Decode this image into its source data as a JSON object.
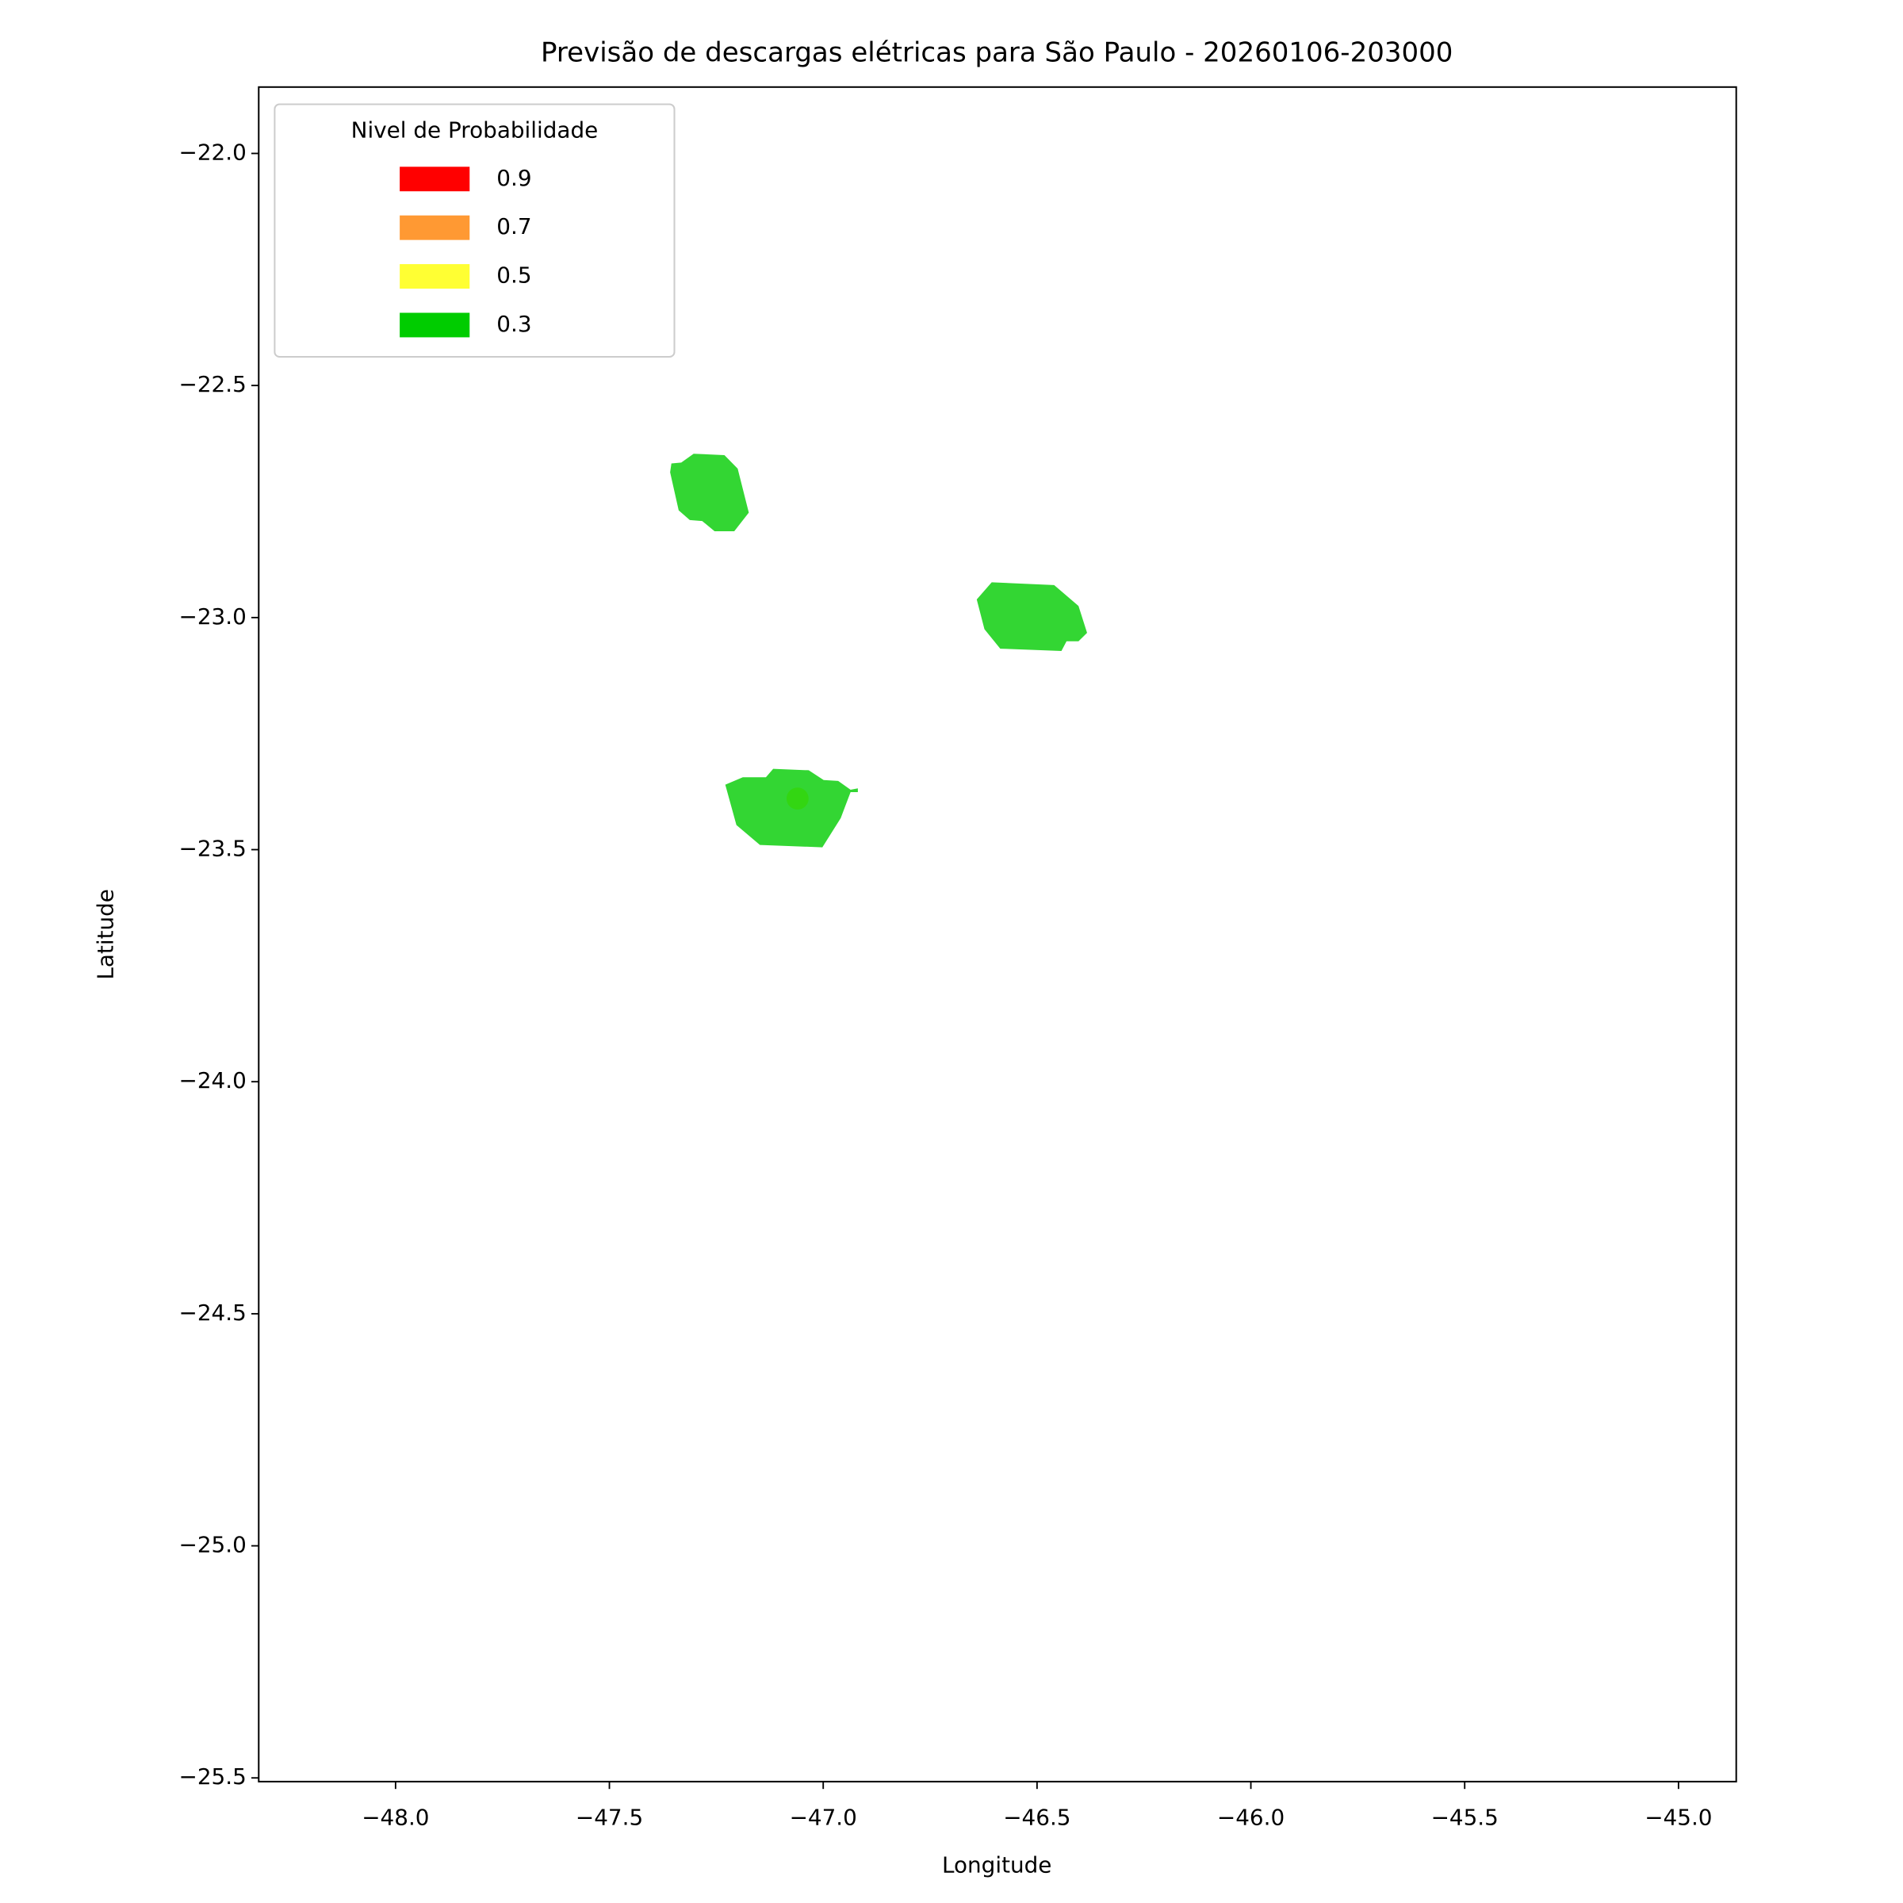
{
  "chart_data": {
    "type": "polygon",
    "title": "Previsão de descargas elétricas para São Paulo - 20260106-203000",
    "xlabel": "Longitude",
    "ylabel": "Latitude",
    "xlim": [
      -48.32,
      -44.865
    ],
    "ylim": [
      -25.508,
      -21.857
    ],
    "xticks": [
      {
        "value": -48.0,
        "label": "−48.0"
      },
      {
        "value": -47.5,
        "label": "−47.5"
      },
      {
        "value": -47.0,
        "label": "−47.0"
      },
      {
        "value": -46.5,
        "label": "−46.5"
      },
      {
        "value": -46.0,
        "label": "−46.0"
      },
      {
        "value": -45.5,
        "label": "−45.5"
      },
      {
        "value": -45.0,
        "label": "−45.0"
      }
    ],
    "yticks": [
      {
        "value": -22.0,
        "label": "−22.0"
      },
      {
        "value": -22.5,
        "label": "−22.5"
      },
      {
        "value": -23.0,
        "label": "−23.0"
      },
      {
        "value": -23.5,
        "label": "−23.5"
      },
      {
        "value": -24.0,
        "label": "−24.0"
      },
      {
        "value": -24.5,
        "label": "−24.5"
      },
      {
        "value": -25.0,
        "label": "−25.0"
      },
      {
        "value": -25.5,
        "label": "−25.5"
      }
    ],
    "legend_title": "Nivel de Probabilidade",
    "legend": "upper left",
    "alpha": 0.8,
    "series": [
      {
        "name": "0.9",
        "color": "#ff0000"
      },
      {
        "name": "0.7",
        "color": "#ff9933"
      },
      {
        "name": "0.5",
        "color": "#ffff33",
        "points": {
          "x": [
            -47.06
          ],
          "y": [
            -23.39
          ]
        }
      },
      {
        "name": "0.3",
        "color": "#00cc00",
        "polygons": [
          {
            "x": [
              -47.355,
              -47.332,
              -47.303,
              -47.231,
              -47.2,
              -47.174,
              -47.208,
              -47.254,
              -47.283,
              -47.312,
              -47.338,
              -47.358
            ],
            "y": [
              -22.668,
              -22.666,
              -22.647,
              -22.65,
              -22.679,
              -22.774,
              -22.814,
              -22.814,
              -22.792,
              -22.79,
              -22.769,
              -22.687
            ]
          },
          {
            "x": [
              -46.606,
              -46.46,
              -46.403,
              -46.383,
              -46.403,
              -46.431,
              -46.443,
              -46.586,
              -46.623,
              -46.641
            ],
            "y": [
              -22.924,
              -22.93,
              -22.975,
              -23.033,
              -23.051,
              -23.051,
              -23.072,
              -23.067,
              -23.025,
              -22.961
            ]
          },
          {
            "x": [
              -47.229,
              -47.188,
              -47.134,
              -47.117,
              -47.034,
              -46.999,
              -46.965,
              -46.936,
              -46.919,
              -46.919,
              -46.936,
              -46.95,
              -46.959,
              -47.002,
              -47.148,
              -47.203
            ],
            "y": [
              -23.36,
              -23.344,
              -23.344,
              -23.326,
              -23.329,
              -23.35,
              -23.352,
              -23.371,
              -23.368,
              -23.376,
              -23.376,
              -23.41,
              -23.432,
              -23.495,
              -23.49,
              -23.447
            ]
          }
        ]
      }
    ]
  }
}
